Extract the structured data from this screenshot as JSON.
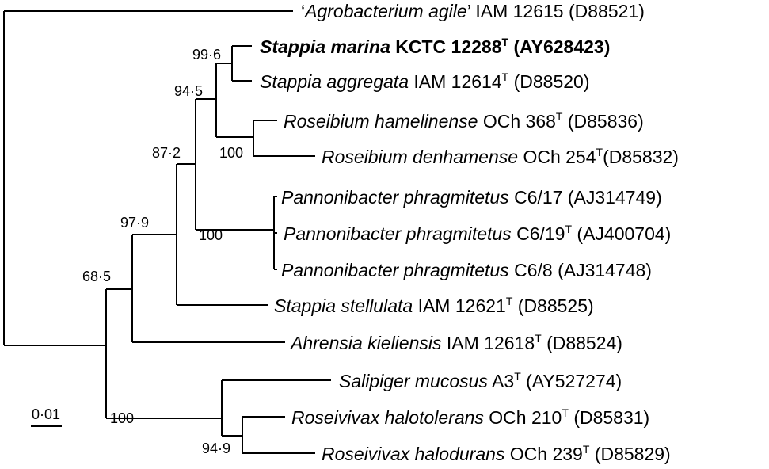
{
  "figure": {
    "kind": "phylogenetic-tree",
    "taxa": [
      {
        "id": "agro",
        "italic": "",
        "prefix": "‘",
        "genus_species": "Agrobacterium agile",
        "suffix_open": "’ IAM 12615",
        "type_strain": false,
        "accession": "(D88521)",
        "bold": false
      },
      {
        "id": "smar",
        "italic": "Stappia marina",
        "strain": "KCTC 12288",
        "type_strain": true,
        "accession": "(AY628423)",
        "bold": true
      },
      {
        "id": "sagg",
        "italic": "Stappia aggregata",
        "strain": "IAM 12614",
        "type_strain": true,
        "accession": "(D88520)",
        "bold": false
      },
      {
        "id": "rham",
        "italic": "Roseibium hamelinense",
        "strain": "OCh 368",
        "type_strain": true,
        "accession": "(D85836)",
        "bold": false
      },
      {
        "id": "rden",
        "italic": "Roseibium denhamense",
        "strain": "OCh 254",
        "type_strain": true,
        "accession": "(D85832)",
        "bold": false
      },
      {
        "id": "pph17",
        "italic": "Pannonibacter phragmitetus",
        "strain": "C6/17",
        "type_strain": false,
        "accession": "(AJ314749)",
        "bold": false
      },
      {
        "id": "pph19",
        "italic": "Pannonibacter phragmitetus",
        "strain": "C6/19",
        "type_strain": true,
        "accession": "(AJ400704)",
        "bold": false
      },
      {
        "id": "pph8",
        "italic": "Pannonibacter phragmitetus",
        "strain": "C6/8",
        "type_strain": false,
        "accession": "(AJ314748)",
        "bold": false
      },
      {
        "id": "sstel",
        "italic": "Stappia stellulata",
        "strain": "IAM 12621",
        "type_strain": true,
        "accession": "(D88525)",
        "bold": false
      },
      {
        "id": "akiel",
        "italic": "Ahrensia kieliensis",
        "strain": "IAM 12618",
        "type_strain": true,
        "accession": "(D88524)",
        "bold": false
      },
      {
        "id": "smuc",
        "italic": "Salipiger mucosus",
        "strain": "A3",
        "type_strain": true,
        "accession": "(AY527274)",
        "bold": false
      },
      {
        "id": "rhtol",
        "italic": "Roseivivax halotolerans",
        "strain": "OCh 210",
        "type_strain": true,
        "accession": "(D85831)",
        "bold": false
      },
      {
        "id": "rhdur",
        "italic": "Roseivivax halodurans",
        "strain": "OCh 239",
        "type_strain": true,
        "accession": "(D85829)",
        "bold": false
      }
    ],
    "type_strain_mark": "T",
    "bootstrap": {
      "b996": "99·6",
      "b945": "94·5",
      "b100a": "100",
      "b872": "87·2",
      "b100b": "100",
      "b979": "97·9",
      "b685": "68·5",
      "b100c": "100",
      "b949": "94·9"
    },
    "scale_bar": "0·01"
  }
}
